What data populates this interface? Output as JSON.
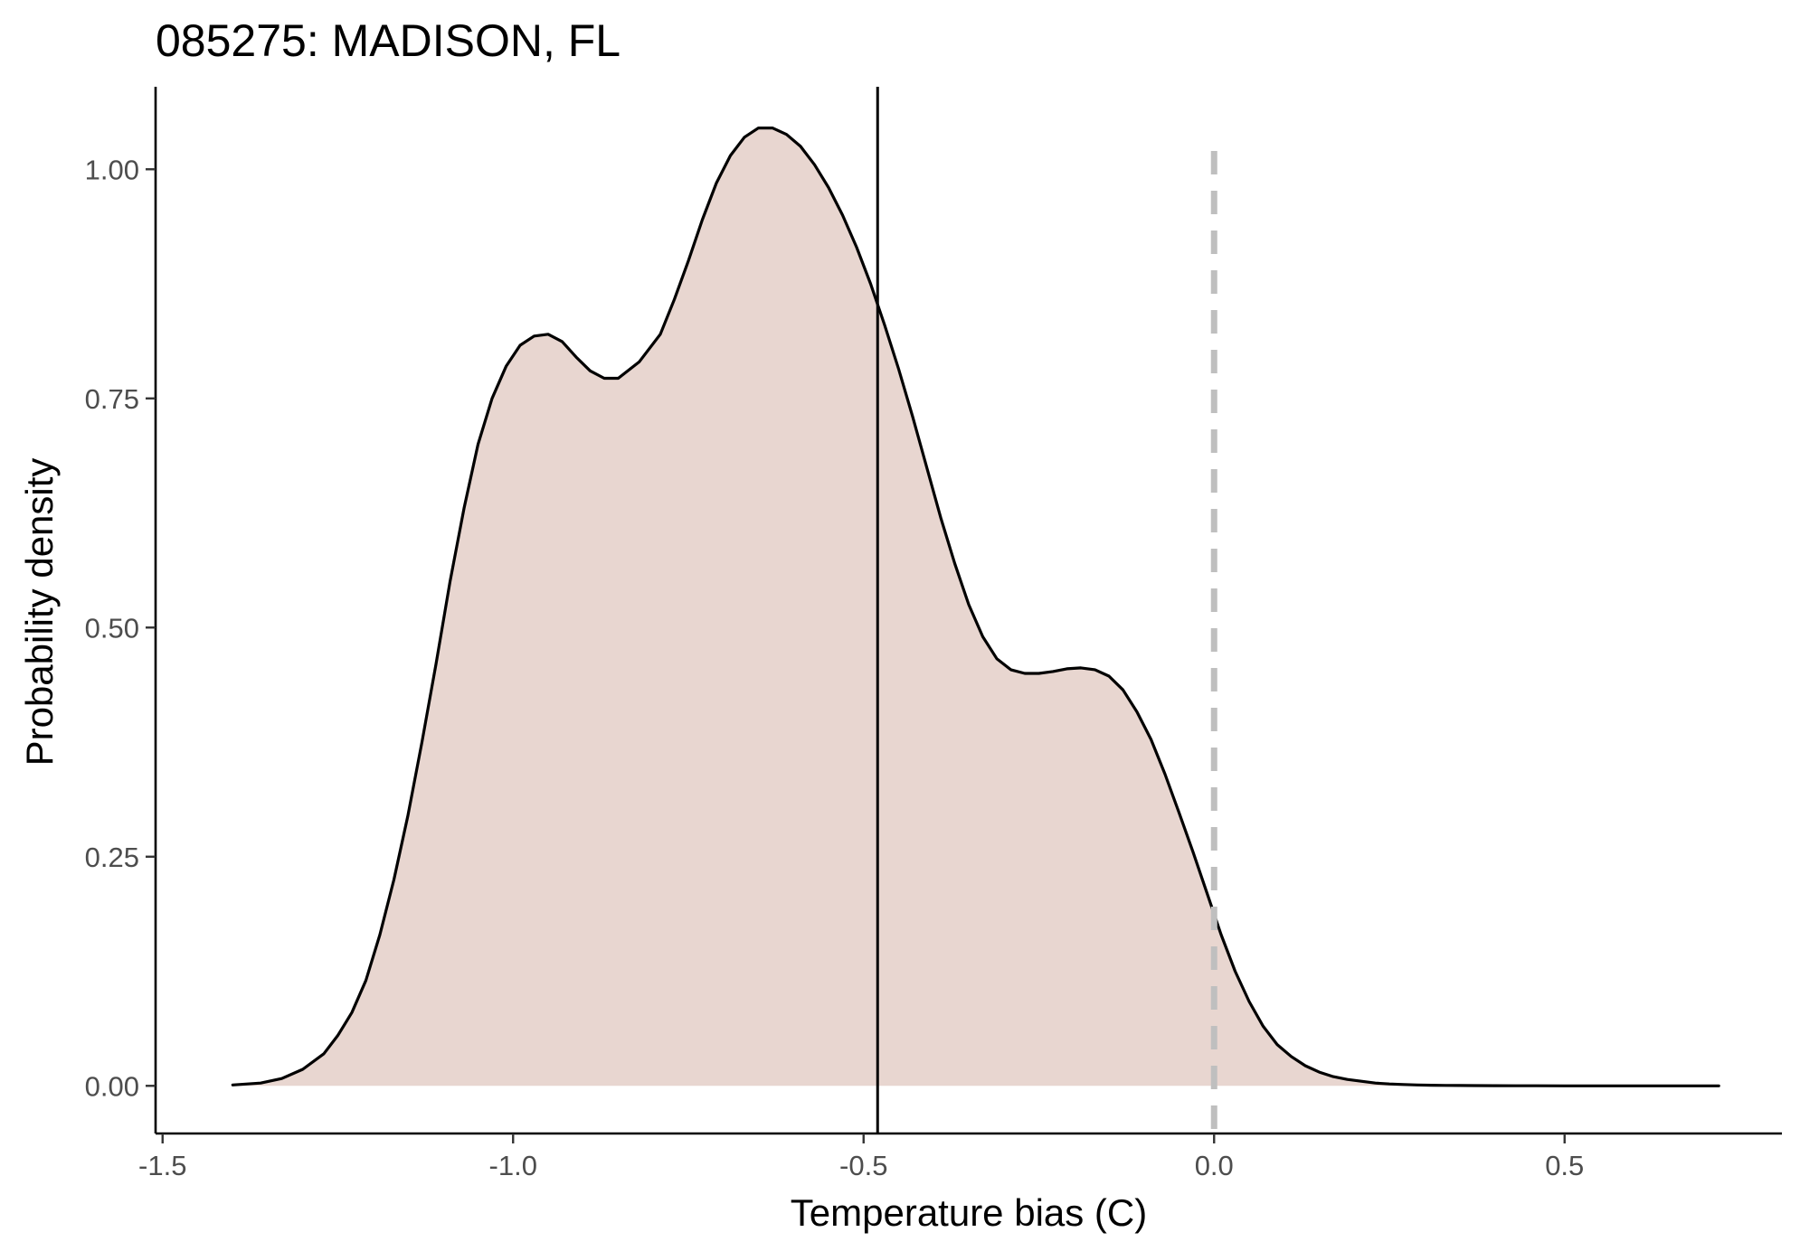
{
  "chart_data": {
    "type": "area",
    "title": "085275: MADISON, FL",
    "xlabel": "Temperature bias (C)",
    "ylabel": "Probability density",
    "xlim": [
      -1.51,
      0.81
    ],
    "ylim": [
      -0.052,
      1.09
    ],
    "x_ticks": [
      -1.5,
      -1.0,
      -0.5,
      0.0,
      0.5
    ],
    "x_tick_labels": [
      "-1.5",
      "-1.0",
      "-0.5",
      "0.0",
      "0.5"
    ],
    "y_ticks": [
      0.0,
      0.25,
      0.5,
      0.75,
      1.0
    ],
    "y_tick_labels": [
      "0.00",
      "0.25",
      "0.50",
      "0.75",
      "1.00"
    ],
    "grid": false,
    "fill_color": "#e8d6d0",
    "line_color": "#000000",
    "density": {
      "x": [
        -1.4,
        -1.36,
        -1.33,
        -1.3,
        -1.27,
        -1.25,
        -1.23,
        -1.21,
        -1.19,
        -1.17,
        -1.15,
        -1.13,
        -1.11,
        -1.09,
        -1.07,
        -1.05,
        -1.03,
        -1.01,
        -0.99,
        -0.97,
        -0.95,
        -0.93,
        -0.91,
        -0.89,
        -0.87,
        -0.85,
        -0.82,
        -0.79,
        -0.77,
        -0.75,
        -0.73,
        -0.71,
        -0.69,
        -0.67,
        -0.65,
        -0.63,
        -0.61,
        -0.59,
        -0.57,
        -0.55,
        -0.53,
        -0.51,
        -0.49,
        -0.47,
        -0.45,
        -0.43,
        -0.41,
        -0.39,
        -0.37,
        -0.35,
        -0.33,
        -0.31,
        -0.29,
        -0.27,
        -0.25,
        -0.23,
        -0.21,
        -0.19,
        -0.17,
        -0.15,
        -0.13,
        -0.11,
        -0.09,
        -0.07,
        -0.05,
        -0.03,
        -0.01,
        0.01,
        0.03,
        0.05,
        0.07,
        0.09,
        0.11,
        0.13,
        0.15,
        0.17,
        0.19,
        0.21,
        0.23,
        0.25,
        0.27,
        0.29,
        0.31,
        0.33,
        0.35,
        0.37,
        0.4,
        0.43,
        0.46,
        0.5,
        0.55,
        0.6,
        0.65,
        0.72
      ],
      "y": [
        0.001,
        0.003,
        0.008,
        0.018,
        0.035,
        0.055,
        0.08,
        0.115,
        0.165,
        0.225,
        0.295,
        0.375,
        0.46,
        0.55,
        0.63,
        0.7,
        0.75,
        0.785,
        0.808,
        0.818,
        0.82,
        0.812,
        0.795,
        0.78,
        0.772,
        0.772,
        0.79,
        0.82,
        0.858,
        0.9,
        0.945,
        0.985,
        1.015,
        1.035,
        1.045,
        1.045,
        1.038,
        1.025,
        1.005,
        0.98,
        0.95,
        0.915,
        0.875,
        0.83,
        0.782,
        0.73,
        0.675,
        0.62,
        0.57,
        0.525,
        0.49,
        0.466,
        0.454,
        0.45,
        0.45,
        0.452,
        0.455,
        0.456,
        0.454,
        0.447,
        0.432,
        0.408,
        0.378,
        0.34,
        0.298,
        0.255,
        0.21,
        0.165,
        0.125,
        0.092,
        0.065,
        0.045,
        0.032,
        0.022,
        0.015,
        0.01,
        0.007,
        0.005,
        0.003,
        0.002,
        0.0015,
        0.001,
        0.0007,
        0.0005,
        0.0004,
        0.0003,
        0.0002,
        0.0001,
        0.0001,
        0.0,
        0.0,
        0.0,
        0.0,
        0.0
      ]
    },
    "reference_lines": [
      {
        "x": -0.48,
        "style": "solid",
        "color": "#000000"
      },
      {
        "x": 0.0,
        "style": "dashed",
        "color": "#bfbfbf"
      }
    ]
  }
}
